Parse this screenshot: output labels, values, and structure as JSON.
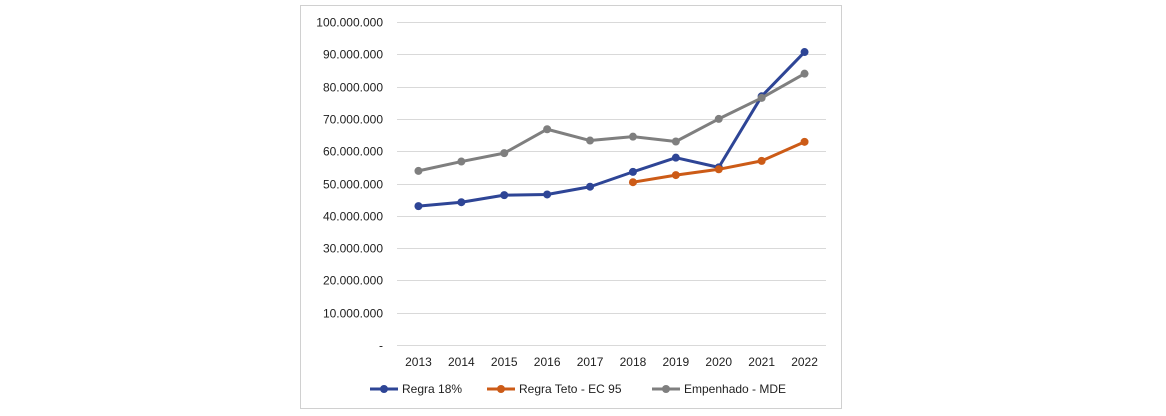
{
  "chart_data": {
    "type": "line",
    "title": "",
    "xlabel": "",
    "ylabel": "",
    "categories": [
      "2013",
      "2014",
      "2015",
      "2016",
      "2017",
      "2018",
      "2019",
      "2020",
      "2021",
      "2022"
    ],
    "ylim": [
      0,
      100000000
    ],
    "y_ticks": [
      {
        "value": 0,
        "label": "-"
      },
      {
        "value": 10000000,
        "label": "10.000.000"
      },
      {
        "value": 20000000,
        "label": "20.000.000"
      },
      {
        "value": 30000000,
        "label": "30.000.000"
      },
      {
        "value": 40000000,
        "label": "40.000.000"
      },
      {
        "value": 50000000,
        "label": "50.000.000"
      },
      {
        "value": 60000000,
        "label": "60.000.000"
      },
      {
        "value": 70000000,
        "label": "70.000.000"
      },
      {
        "value": 80000000,
        "label": "80.000.000"
      },
      {
        "value": 90000000,
        "label": "90.000.000"
      },
      {
        "value": 100000000,
        "label": "100.000.000"
      }
    ],
    "grid": true,
    "legend_position": "bottom",
    "series": [
      {
        "name": "Regra 18%",
        "color": "#2e4596",
        "values": [
          43000000,
          44200000,
          46400000,
          46600000,
          49000000,
          53600000,
          58000000,
          55000000,
          77000000,
          90700000
        ]
      },
      {
        "name": "Regra Teto - EC 95",
        "color": "#cc5b17",
        "values": [
          null,
          null,
          null,
          null,
          null,
          50400000,
          52600000,
          54400000,
          57000000,
          62900000
        ]
      },
      {
        "name": "Empenhado - MDE",
        "color": "#7f7f7f",
        "values": [
          53900000,
          56800000,
          59400000,
          66800000,
          63300000,
          64500000,
          63000000,
          70000000,
          76500000,
          84000000
        ]
      }
    ]
  }
}
